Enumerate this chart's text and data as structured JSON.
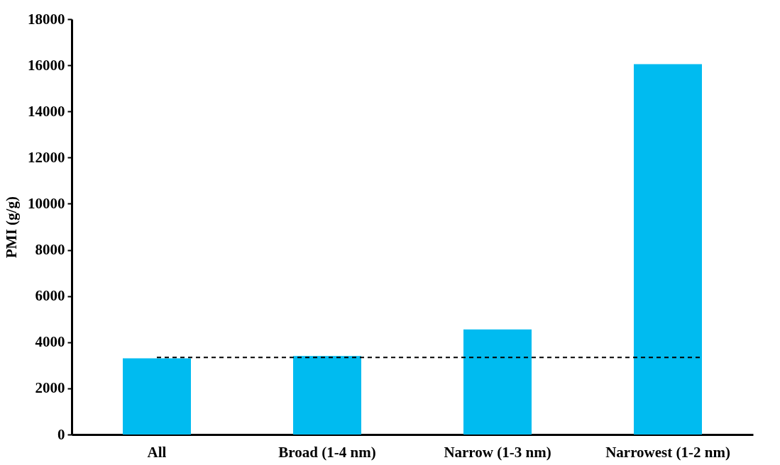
{
  "chart_data": {
    "type": "bar",
    "ylabel": "PMI (g/g)",
    "categories": [
      "All",
      "Broad (1-4 nm)",
      "Narrow (1-3 nm)",
      "Narrowest (1-2 nm)"
    ],
    "values": [
      3300,
      3400,
      4550,
      16050
    ],
    "color": "#00bbf0",
    "ylim": [
      0,
      18000
    ],
    "yticks": [
      0,
      2000,
      4000,
      6000,
      8000,
      10000,
      12000,
      14000,
      16000,
      18000
    ],
    "grid": false,
    "ref_lines": [
      {
        "axis": "y",
        "value": 3340,
        "color": "#000000",
        "line_style": "dashed"
      }
    ]
  }
}
